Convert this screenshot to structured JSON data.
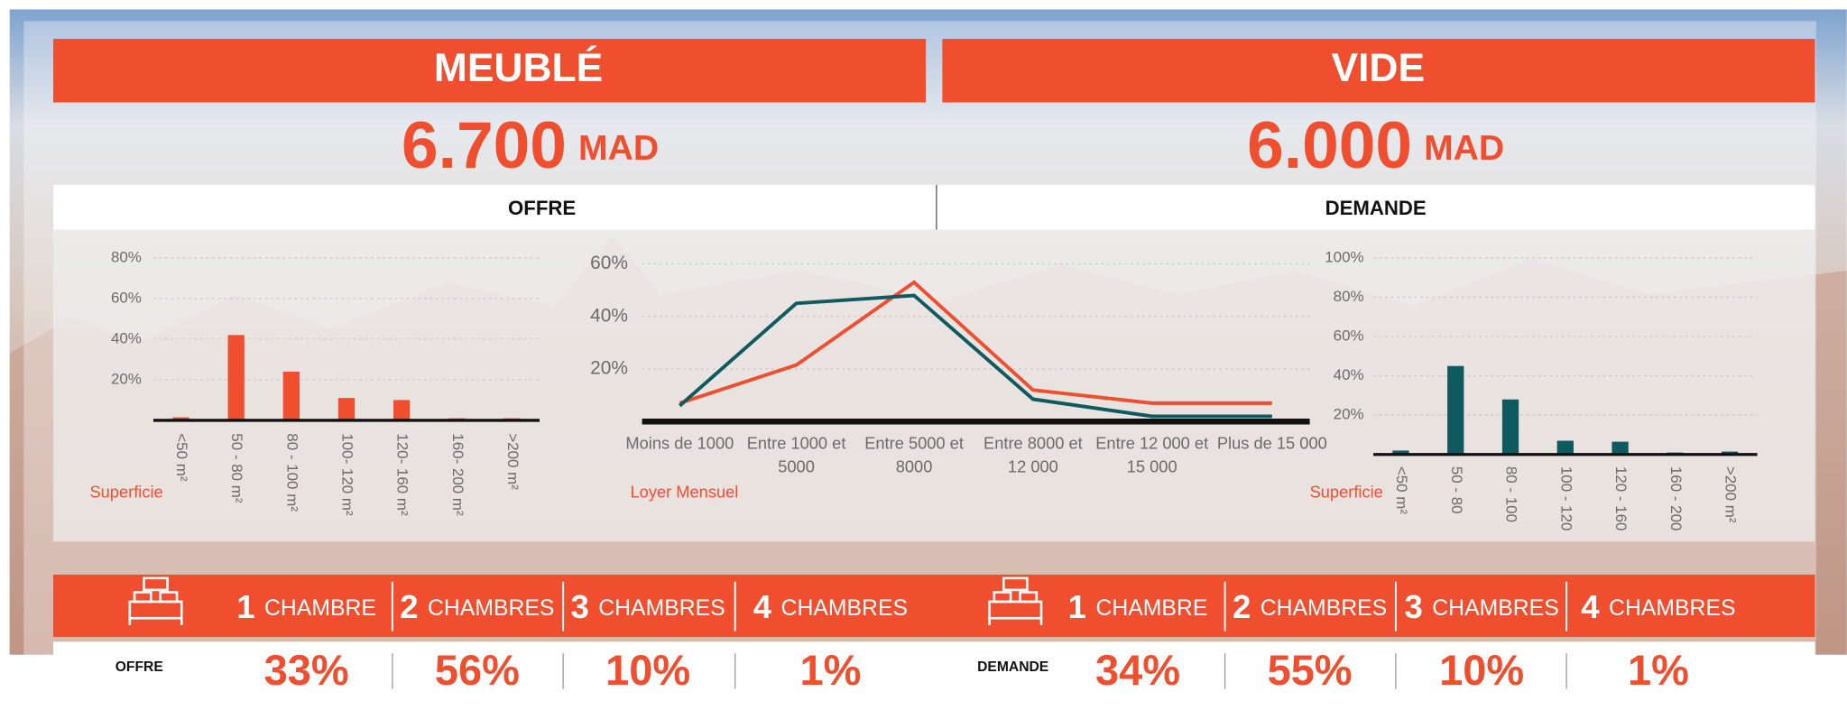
{
  "header": {
    "left_title": "MEUBLÉ",
    "right_title": "VIDE"
  },
  "prices": [
    {
      "amount": "6.700",
      "unit": "MAD"
    },
    {
      "amount": "6.000",
      "unit": "MAD"
    }
  ],
  "sections": [
    "OFFRE",
    "DEMANDE"
  ],
  "chart_data": [
    {
      "type": "bar",
      "x_label": "Superficie",
      "categories": [
        "<50 m²",
        "50 - 80 m²",
        "80 - 100 m²",
        "100- 120 m²",
        "120- 160 m²",
        "160- 200 m²",
        ">200 m²"
      ],
      "values": [
        1.5,
        42,
        24,
        11,
        10,
        1,
        1
      ],
      "color": "#f04f2f",
      "ylim": [
        0,
        80
      ],
      "yticks": [
        {
          "value": 20,
          "label": "20%"
        },
        {
          "value": 40,
          "label": "40%"
        },
        {
          "value": 60,
          "label": "60%"
        },
        {
          "value": 80,
          "label": "80%"
        }
      ],
      "grid": true
    },
    {
      "type": "line",
      "x_label": "Loyer Mensuel",
      "categories": [
        "Moins de 1000",
        "Entre 1000 et 5000",
        "Entre 5000 et 8000",
        "Entre 8000 et 12 000",
        "Entre 12 000 et 15 000",
        "Plus de 15 000"
      ],
      "series": [
        {
          "color": "#f04f2f",
          "values": [
            7,
            21.5,
            53,
            12,
            7,
            7
          ]
        },
        {
          "color": "#0f5a5e",
          "values": [
            6,
            45,
            48,
            8.5,
            2,
            2
          ]
        }
      ],
      "ylim": [
        0,
        65
      ],
      "yticks": [
        {
          "value": 20,
          "label": "20%"
        },
        {
          "value": 40,
          "label": "40%"
        },
        {
          "value": 60,
          "label": "60%"
        }
      ],
      "grid": true
    },
    {
      "type": "bar",
      "x_label": "Superficie",
      "categories": [
        "<50 m²",
        "50 - 80",
        "80 - 100",
        "100 - 120",
        "120 - 160",
        "160 - 200",
        ">200 m²"
      ],
      "values": [
        2,
        45,
        28,
        7,
        6.5,
        1,
        1.5
      ],
      "color": "#0f5a5e",
      "ylim": [
        0,
        100
      ],
      "yticks": [
        {
          "value": 20,
          "label": "20%"
        },
        {
          "value": 40,
          "label": "40%"
        },
        {
          "value": 60,
          "label": "60%"
        },
        {
          "value": 80,
          "label": "80%"
        },
        {
          "value": 100,
          "label": "100%"
        }
      ],
      "grid": true
    }
  ],
  "rooms": [
    {
      "label": "OFFRE",
      "items": [
        {
          "count": "1",
          "word": "CHAMBRE",
          "share": "33%"
        },
        {
          "count": "2",
          "word": "CHAMBRES",
          "share": "56%"
        },
        {
          "count": "3",
          "word": "CHAMBRES",
          "share": "10%"
        },
        {
          "count": "4",
          "word": "CHAMBRES",
          "share": "1%"
        }
      ]
    },
    {
      "label": "DEMANDE",
      "items": [
        {
          "count": "1",
          "word": "CHAMBRE",
          "share": "34%"
        },
        {
          "count": "2",
          "word": "CHAMBRES",
          "share": "55%"
        },
        {
          "count": "3",
          "word": "CHAMBRES",
          "share": "10%"
        },
        {
          "count": "4",
          "word": "CHAMBRES",
          "share": "1%"
        }
      ]
    }
  ]
}
